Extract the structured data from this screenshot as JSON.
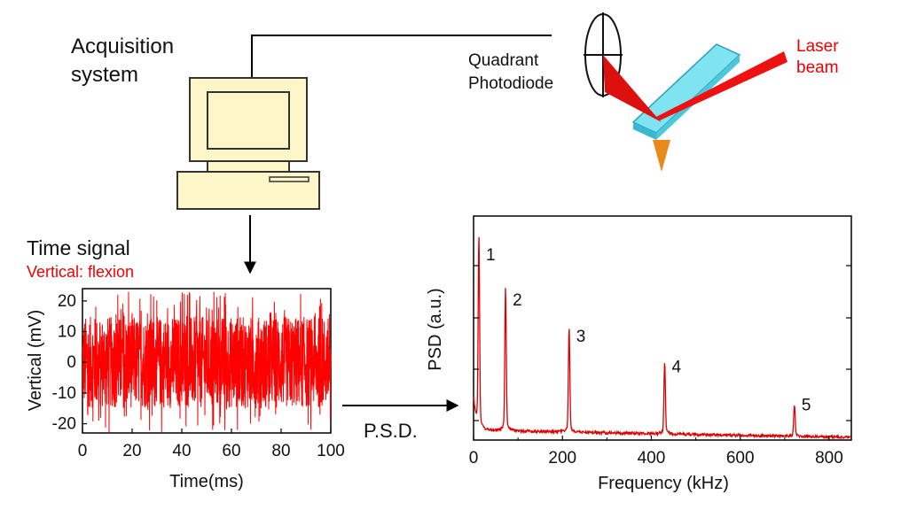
{
  "colors": {
    "accent_red": "#ee0000",
    "signal_red": "#ff0000",
    "psd_red": "#dd0000",
    "cantilever": "#7fe3f0",
    "tip": "#e88a1a",
    "computer_fill": "#fdf6c8"
  },
  "labels": {
    "acquisition_line1": "Acquisition",
    "acquisition_line2": "system",
    "quadrant_line1": "Quadrant",
    "quadrant_line2": "Photodiode",
    "laser_line1": "Laser",
    "laser_line2": "beam",
    "time_signal_title": "Time signal",
    "time_signal_subtitle": "Vertical: flexion",
    "psd_arrow_label": "P.S.D."
  },
  "chart_data": [
    {
      "type": "line",
      "title": "Time signal",
      "subtitle": "Vertical: flexion",
      "xlabel": "Time(ms)",
      "ylabel": "Vertical (mV)",
      "xlim": [
        0,
        100
      ],
      "ylim": [
        -23,
        24
      ],
      "xticks": [
        "0",
        "20",
        "40",
        "60",
        "80",
        "100"
      ],
      "yticks": [
        "-20",
        "-10",
        "0",
        "10",
        "20"
      ],
      "series": [
        {
          "signal": "random noise",
          "mean": 0,
          "typical_amplitude": 15,
          "max_abs": 23
        }
      ]
    },
    {
      "type": "line",
      "title": "",
      "xlabel": "Frequency (kHz)",
      "ylabel": "PSD (a.u.)",
      "xlim": [
        0,
        850
      ],
      "xticks": [
        "0",
        "200",
        "400",
        "600",
        "800"
      ],
      "peaks": [
        {
          "label": "1",
          "frequency_khz": 12,
          "relative_height": 1.0
        },
        {
          "label": "2",
          "frequency_khz": 72,
          "relative_height": 0.75
        },
        {
          "label": "3",
          "frequency_khz": 215,
          "relative_height": 0.55
        },
        {
          "label": "4",
          "frequency_khz": 430,
          "relative_height": 0.38
        },
        {
          "label": "5",
          "frequency_khz": 722,
          "relative_height": 0.17
        }
      ]
    }
  ]
}
